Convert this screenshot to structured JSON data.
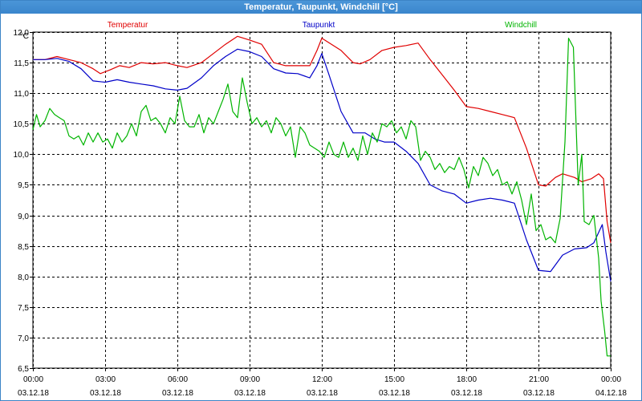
{
  "window": {
    "title": "Temperatur, Taupunkt, Windchill [°C]"
  },
  "colors": {
    "frame": "#3c84c6",
    "titlebar": "#3a86cc"
  },
  "chart_data": {
    "type": "line",
    "yunit": "°C",
    "ylim": [
      6.5,
      12.0
    ],
    "yticks": [
      12.0,
      11.5,
      11.0,
      10.5,
      10.0,
      9.5,
      9.0,
      8.5,
      8.0,
      7.5,
      7.0,
      6.5
    ],
    "ytick_labels": [
      "12,0",
      "11,5",
      "11,0",
      "10,5",
      "10,0",
      "9,5",
      "9,0",
      "8,5",
      "8,0",
      "7,5",
      "7,0",
      "6,5"
    ],
    "xlim": [
      0,
      24
    ],
    "xticks": [
      0,
      3,
      6,
      9,
      12,
      15,
      18,
      21,
      24
    ],
    "xtick_time_labels": [
      "00:00",
      "03:00",
      "06:00",
      "09:00",
      "12:00",
      "15:00",
      "18:00",
      "21:00",
      "00:00"
    ],
    "xtick_date_labels": [
      "03.12.18",
      "03.12.18",
      "03.12.18",
      "03.12.18",
      "03.12.18",
      "03.12.18",
      "03.12.18",
      "03.12.18",
      "04.12.18"
    ],
    "grid": true,
    "series": [
      {
        "name": "Temperatur",
        "color": "#e00000",
        "points": [
          [
            0,
            11.55
          ],
          [
            0.5,
            11.55
          ],
          [
            1,
            11.6
          ],
          [
            1.5,
            11.55
          ],
          [
            2,
            11.5
          ],
          [
            2.5,
            11.4
          ],
          [
            2.8,
            11.32
          ],
          [
            3.2,
            11.38
          ],
          [
            3.6,
            11.45
          ],
          [
            4,
            11.42
          ],
          [
            4.5,
            11.5
          ],
          [
            5,
            11.48
          ],
          [
            5.5,
            11.5
          ],
          [
            6,
            11.45
          ],
          [
            6.4,
            11.42
          ],
          [
            7,
            11.5
          ],
          [
            7.5,
            11.65
          ],
          [
            8,
            11.8
          ],
          [
            8.5,
            11.93
          ],
          [
            9,
            11.87
          ],
          [
            9.5,
            11.8
          ],
          [
            10,
            11.5
          ],
          [
            10.5,
            11.45
          ],
          [
            11,
            11.45
          ],
          [
            11.5,
            11.45
          ],
          [
            11.8,
            11.7
          ],
          [
            12,
            11.9
          ],
          [
            12.4,
            11.8
          ],
          [
            12.8,
            11.7
          ],
          [
            13.3,
            11.5
          ],
          [
            13.6,
            11.48
          ],
          [
            14,
            11.55
          ],
          [
            14.5,
            11.7
          ],
          [
            15,
            11.75
          ],
          [
            15.5,
            11.78
          ],
          [
            16,
            11.82
          ],
          [
            16.5,
            11.55
          ],
          [
            17,
            11.3
          ],
          [
            17.5,
            11.05
          ],
          [
            18,
            10.78
          ],
          [
            18.5,
            10.75
          ],
          [
            19,
            10.7
          ],
          [
            19.5,
            10.65
          ],
          [
            20,
            10.6
          ],
          [
            20.5,
            10.1
          ],
          [
            21,
            9.5
          ],
          [
            21.3,
            9.48
          ],
          [
            21.7,
            9.62
          ],
          [
            22,
            9.68
          ],
          [
            22.5,
            9.62
          ],
          [
            22.8,
            9.55
          ],
          [
            23.2,
            9.6
          ],
          [
            23.5,
            9.68
          ],
          [
            23.7,
            9.6
          ],
          [
            23.85,
            8.9
          ],
          [
            24,
            8.55
          ]
        ]
      },
      {
        "name": "Taupunkt",
        "color": "#0000c8",
        "points": [
          [
            0,
            11.55
          ],
          [
            0.5,
            11.55
          ],
          [
            1,
            11.57
          ],
          [
            1.5,
            11.52
          ],
          [
            2,
            11.4
          ],
          [
            2.5,
            11.2
          ],
          [
            3,
            11.18
          ],
          [
            3.5,
            11.22
          ],
          [
            4,
            11.18
          ],
          [
            4.5,
            11.15
          ],
          [
            5,
            11.12
          ],
          [
            5.5,
            11.07
          ],
          [
            6,
            11.05
          ],
          [
            6.4,
            11.08
          ],
          [
            7,
            11.25
          ],
          [
            7.5,
            11.45
          ],
          [
            8,
            11.6
          ],
          [
            8.5,
            11.72
          ],
          [
            9,
            11.68
          ],
          [
            9.5,
            11.6
          ],
          [
            10,
            11.4
          ],
          [
            10.5,
            11.33
          ],
          [
            11,
            11.32
          ],
          [
            11.5,
            11.25
          ],
          [
            11.8,
            11.45
          ],
          [
            12,
            11.65
          ],
          [
            12.3,
            11.3
          ],
          [
            12.8,
            10.7
          ],
          [
            13.3,
            10.35
          ],
          [
            13.8,
            10.35
          ],
          [
            14.2,
            10.25
          ],
          [
            14.6,
            10.2
          ],
          [
            15,
            10.2
          ],
          [
            15.5,
            10.05
          ],
          [
            16,
            9.85
          ],
          [
            16.5,
            9.5
          ],
          [
            17,
            9.4
          ],
          [
            17.5,
            9.35
          ],
          [
            18,
            9.2
          ],
          [
            18.5,
            9.25
          ],
          [
            19,
            9.28
          ],
          [
            19.5,
            9.25
          ],
          [
            20,
            9.2
          ],
          [
            20.5,
            8.6
          ],
          [
            21,
            8.1
          ],
          [
            21.5,
            8.08
          ],
          [
            22,
            8.35
          ],
          [
            22.5,
            8.45
          ],
          [
            23,
            8.47
          ],
          [
            23.3,
            8.55
          ],
          [
            23.65,
            8.85
          ],
          [
            23.8,
            8.4
          ],
          [
            24,
            7.92
          ]
        ]
      },
      {
        "name": "Windchill",
        "color": "#00b400",
        "points": [
          [
            0,
            10.4
          ],
          [
            0.15,
            10.65
          ],
          [
            0.3,
            10.45
          ],
          [
            0.5,
            10.55
          ],
          [
            0.7,
            10.75
          ],
          [
            0.9,
            10.65
          ],
          [
            1.1,
            10.6
          ],
          [
            1.3,
            10.55
          ],
          [
            1.5,
            10.3
          ],
          [
            1.7,
            10.25
          ],
          [
            1.9,
            10.3
          ],
          [
            2.1,
            10.15
          ],
          [
            2.3,
            10.35
          ],
          [
            2.5,
            10.2
          ],
          [
            2.7,
            10.35
          ],
          [
            2.9,
            10.2
          ],
          [
            3.1,
            10.25
          ],
          [
            3.3,
            10.1
          ],
          [
            3.5,
            10.35
          ],
          [
            3.7,
            10.2
          ],
          [
            3.9,
            10.3
          ],
          [
            4.1,
            10.5
          ],
          [
            4.3,
            10.3
          ],
          [
            4.5,
            10.7
          ],
          [
            4.7,
            10.8
          ],
          [
            4.9,
            10.55
          ],
          [
            5.1,
            10.6
          ],
          [
            5.3,
            10.5
          ],
          [
            5.5,
            10.35
          ],
          [
            5.7,
            10.6
          ],
          [
            5.9,
            10.5
          ],
          [
            6.1,
            10.95
          ],
          [
            6.3,
            10.55
          ],
          [
            6.5,
            10.45
          ],
          [
            6.7,
            10.45
          ],
          [
            6.9,
            10.65
          ],
          [
            7.1,
            10.35
          ],
          [
            7.3,
            10.6
          ],
          [
            7.5,
            10.5
          ],
          [
            7.7,
            10.7
          ],
          [
            7.9,
            10.9
          ],
          [
            8.1,
            11.15
          ],
          [
            8.3,
            10.7
          ],
          [
            8.5,
            10.6
          ],
          [
            8.7,
            11.25
          ],
          [
            8.9,
            10.85
          ],
          [
            9.1,
            10.5
          ],
          [
            9.3,
            10.6
          ],
          [
            9.5,
            10.45
          ],
          [
            9.7,
            10.55
          ],
          [
            9.9,
            10.35
          ],
          [
            10.1,
            10.6
          ],
          [
            10.3,
            10.5
          ],
          [
            10.5,
            10.3
          ],
          [
            10.7,
            10.45
          ],
          [
            10.9,
            9.95
          ],
          [
            11.1,
            10.45
          ],
          [
            11.3,
            10.35
          ],
          [
            11.5,
            10.15
          ],
          [
            11.7,
            10.1
          ],
          [
            11.9,
            10.05
          ],
          [
            12.1,
            9.95
          ],
          [
            12.3,
            10.2
          ],
          [
            12.5,
            10.0
          ],
          [
            12.7,
            9.95
          ],
          [
            12.9,
            10.2
          ],
          [
            13.1,
            9.95
          ],
          [
            13.3,
            10.1
          ],
          [
            13.5,
            9.9
          ],
          [
            13.7,
            10.3
          ],
          [
            13.9,
            10.0
          ],
          [
            14.1,
            10.35
          ],
          [
            14.3,
            10.2
          ],
          [
            14.5,
            10.5
          ],
          [
            14.7,
            10.45
          ],
          [
            14.9,
            10.55
          ],
          [
            15.1,
            10.35
          ],
          [
            15.3,
            10.45
          ],
          [
            15.5,
            10.25
          ],
          [
            15.7,
            10.55
          ],
          [
            15.9,
            10.45
          ],
          [
            16.1,
            9.9
          ],
          [
            16.3,
            10.05
          ],
          [
            16.5,
            9.95
          ],
          [
            16.7,
            9.75
          ],
          [
            16.9,
            9.85
          ],
          [
            17.1,
            9.7
          ],
          [
            17.3,
            9.8
          ],
          [
            17.5,
            9.75
          ],
          [
            17.7,
            9.95
          ],
          [
            17.9,
            9.75
          ],
          [
            18.1,
            9.45
          ],
          [
            18.3,
            9.8
          ],
          [
            18.5,
            9.65
          ],
          [
            18.7,
            9.95
          ],
          [
            18.9,
            9.85
          ],
          [
            19.1,
            9.65
          ],
          [
            19.3,
            9.75
          ],
          [
            19.5,
            9.5
          ],
          [
            19.7,
            9.55
          ],
          [
            19.9,
            9.35
          ],
          [
            20.1,
            9.55
          ],
          [
            20.3,
            9.25
          ],
          [
            20.5,
            8.85
          ],
          [
            20.7,
            9.35
          ],
          [
            20.9,
            8.75
          ],
          [
            21.1,
            8.85
          ],
          [
            21.3,
            8.6
          ],
          [
            21.5,
            8.65
          ],
          [
            21.7,
            8.55
          ],
          [
            21.9,
            8.95
          ],
          [
            22.1,
            10.2
          ],
          [
            22.25,
            11.9
          ],
          [
            22.45,
            11.75
          ],
          [
            22.65,
            9.5
          ],
          [
            22.8,
            10.0
          ],
          [
            22.9,
            8.9
          ],
          [
            23.1,
            8.85
          ],
          [
            23.3,
            9.0
          ],
          [
            23.5,
            8.3
          ],
          [
            23.6,
            7.6
          ],
          [
            23.75,
            7.1
          ],
          [
            23.85,
            6.7
          ],
          [
            24,
            6.7
          ]
        ]
      }
    ]
  }
}
